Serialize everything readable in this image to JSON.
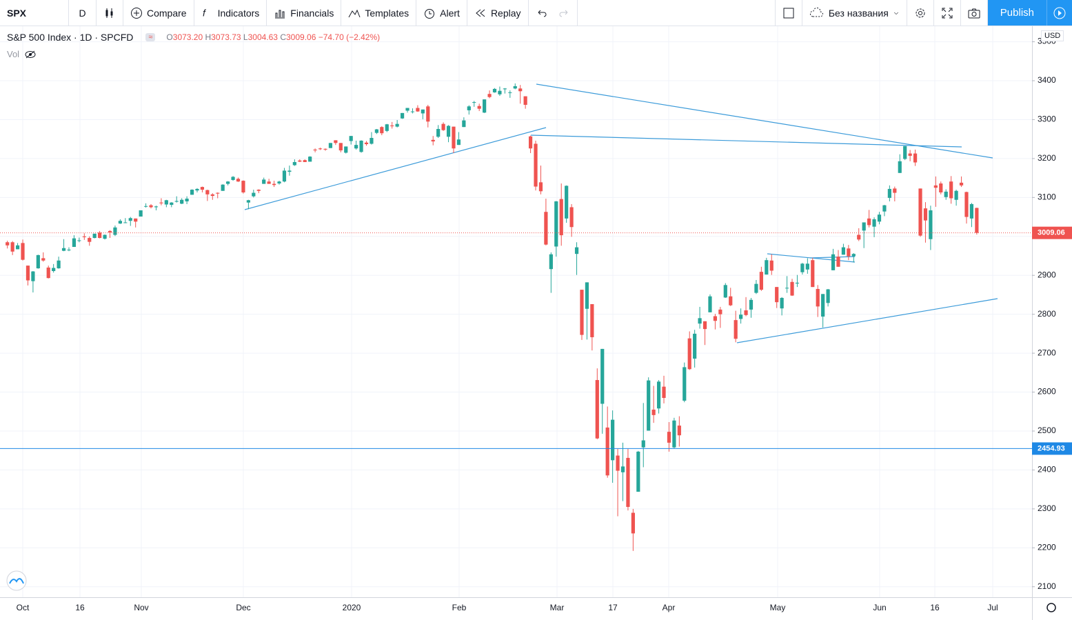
{
  "toolbar": {
    "symbol": "SPX",
    "interval": "D",
    "compare": "Compare",
    "indicators": "Indicators",
    "financials": "Financials",
    "templates": "Templates",
    "alert": "Alert",
    "replay": "Replay",
    "layout_name": "Без названия",
    "publish": "Publish"
  },
  "legend": {
    "title": "S&P 500 Index · 1D · SPCFD",
    "o_label": "O",
    "o": "3073.20",
    "h_label": "H",
    "h": "3073.73",
    "l_label": "L",
    "l": "3004.63",
    "c_label": "C",
    "c": "3009.06",
    "change": "−74.70 (−2.42%)",
    "vol": "Vol"
  },
  "currency": "USD",
  "chart_data": {
    "type": "candlestick",
    "colors": {
      "up": "#26a69a",
      "down": "#ef5350",
      "line": "#1e88e5"
    },
    "grid": true,
    "ylim": [
      2073,
      3540
    ],
    "yticks": [
      2100,
      2200,
      2300,
      2400,
      2500,
      2600,
      2700,
      2800,
      2900,
      3000,
      3100,
      3200,
      3300,
      3400,
      3500
    ],
    "x_labels": [
      "Oct",
      "16",
      "Nov",
      "Dec",
      "2020",
      "Feb",
      "Mar",
      "17",
      "Apr",
      "May",
      "Jun",
      "16",
      "Jul"
    ],
    "last_price": 3009.06,
    "hline_price": 2454.93,
    "candles": [
      [
        2985,
        2989,
        2969,
        2977
      ],
      [
        2985,
        2988,
        2952,
        2961
      ],
      [
        2967,
        2983,
        2967,
        2977
      ],
      [
        2983,
        2992,
        2938,
        2940
      ],
      [
        2925,
        2925,
        2874,
        2887
      ],
      [
        2885,
        2911,
        2856,
        2910
      ],
      [
        2918,
        2953,
        2917,
        2952
      ],
      [
        2944,
        2959,
        2935,
        2938
      ],
      [
        2920,
        2925,
        2892,
        2893
      ],
      [
        2911,
        2929,
        2907,
        2919
      ],
      [
        2918,
        2948,
        2917,
        2938
      ],
      [
        2963,
        2993,
        2962,
        2970
      ],
      [
        2966,
        2972,
        2962,
        2966
      ],
      [
        2973,
        3003,
        2973,
        2995
      ],
      [
        2989,
        2997,
        2985,
        2990
      ],
      [
        3000,
        3008,
        2991,
        2998
      ],
      [
        2996,
        3000,
        2976,
        2986
      ],
      [
        2996,
        3007,
        2995,
        3007
      ],
      [
        3010,
        3014,
        2995,
        2996
      ],
      [
        2994,
        3005,
        2992,
        3004
      ],
      [
        3014,
        3016,
        2996,
        3010
      ],
      [
        3004,
        3028,
        3001,
        3023
      ],
      [
        3033,
        3044,
        3032,
        3040
      ],
      [
        3036,
        3047,
        3034,
        3036
      ],
      [
        3040,
        3050,
        3027,
        3047
      ],
      [
        3046,
        3046,
        3023,
        3038
      ],
      [
        3051,
        3067,
        3051,
        3067
      ],
      [
        3078,
        3085,
        3074,
        3078
      ],
      [
        3080,
        3083,
        3072,
        3075
      ],
      [
        3075,
        3079,
        3067,
        3077
      ],
      [
        3087,
        3098,
        3080,
        3085
      ],
      [
        3082,
        3094,
        3075,
        3093
      ],
      [
        3081,
        3088,
        3075,
        3087
      ],
      [
        3089,
        3103,
        3087,
        3091
      ],
      [
        3084,
        3098,
        3083,
        3094
      ],
      [
        3090,
        3103,
        3083,
        3097
      ],
      [
        3107,
        3121,
        3107,
        3120
      ],
      [
        3118,
        3124,
        3113,
        3122
      ],
      [
        3127,
        3128,
        3113,
        3120
      ],
      [
        3119,
        3120,
        3091,
        3108
      ],
      [
        3108,
        3111,
        3094,
        3104
      ],
      [
        3112,
        3113,
        3098,
        3110
      ],
      [
        3117,
        3134,
        3117,
        3133
      ],
      [
        3135,
        3142,
        3131,
        3141
      ],
      [
        3145,
        3155,
        3143,
        3153
      ],
      [
        3148,
        3151,
        3140,
        3141
      ],
      [
        3143,
        3144,
        3110,
        3113
      ],
      [
        3087,
        3094,
        3070,
        3093
      ],
      [
        3103,
        3120,
        3100,
        3112
      ],
      [
        3120,
        3121,
        3111,
        3117
      ],
      [
        3135,
        3151,
        3135,
        3146
      ],
      [
        3141,
        3148,
        3135,
        3135
      ],
      [
        3135,
        3143,
        3127,
        3132
      ],
      [
        3136,
        3143,
        3133,
        3141
      ],
      [
        3141,
        3176,
        3139,
        3169
      ],
      [
        3166,
        3182,
        3156,
        3169
      ],
      [
        3183,
        3198,
        3181,
        3191
      ],
      [
        3195,
        3198,
        3191,
        3192
      ],
      [
        3196,
        3198,
        3191,
        3191
      ],
      [
        3192,
        3206,
        3192,
        3205
      ],
      [
        3223,
        3226,
        3216,
        3221
      ],
      [
        3226,
        3228,
        3222,
        3224
      ],
      [
        3225,
        3226,
        3220,
        3223
      ],
      [
        3227,
        3240,
        3227,
        3240
      ],
      [
        3247,
        3247,
        3235,
        3240
      ],
      [
        3240,
        3240,
        3216,
        3221
      ],
      [
        3215,
        3231,
        3213,
        3231
      ],
      [
        3245,
        3258,
        3236,
        3258
      ],
      [
        3226,
        3246,
        3223,
        3235
      ],
      [
        3217,
        3247,
        3215,
        3246
      ],
      [
        3241,
        3245,
        3233,
        3237
      ],
      [
        3238,
        3268,
        3236,
        3253
      ],
      [
        3266,
        3276,
        3263,
        3275
      ],
      [
        3281,
        3283,
        3260,
        3265
      ],
      [
        3271,
        3289,
        3268,
        3288
      ],
      [
        3285,
        3294,
        3277,
        3283
      ],
      [
        3282,
        3299,
        3280,
        3289
      ],
      [
        3303,
        3317,
        3302,
        3317
      ],
      [
        3323,
        3330,
        3318,
        3330
      ],
      [
        3321,
        3329,
        3316,
        3321
      ],
      [
        3330,
        3337,
        3320,
        3321
      ],
      [
        3316,
        3326,
        3301,
        3326
      ],
      [
        3334,
        3338,
        3280,
        3295
      ],
      [
        3248,
        3258,
        3234,
        3244
      ],
      [
        3256,
        3286,
        3253,
        3276
      ],
      [
        3289,
        3293,
        3271,
        3273
      ],
      [
        3256,
        3286,
        3242,
        3284
      ],
      [
        3282,
        3282,
        3214,
        3226
      ],
      [
        3235,
        3268,
        3235,
        3249
      ],
      [
        3281,
        3306,
        3281,
        3298
      ],
      [
        3324,
        3337,
        3313,
        3334
      ],
      [
        3344,
        3348,
        3333,
        3345
      ],
      [
        3335,
        3341,
        3322,
        3328
      ],
      [
        3318,
        3352,
        3317,
        3352
      ],
      [
        3366,
        3375,
        3355,
        3358
      ],
      [
        3370,
        3381,
        3369,
        3379
      ],
      [
        3365,
        3385,
        3361,
        3374
      ],
      [
        3378,
        3381,
        3367,
        3380
      ],
      [
        3369,
        3375,
        3356,
        3370
      ],
      [
        3380,
        3393,
        3378,
        3386
      ],
      [
        3380,
        3389,
        3341,
        3373
      ],
      [
        3360,
        3360,
        3328,
        3338
      ],
      [
        3257,
        3259,
        3214,
        3226
      ],
      [
        3238,
        3246,
        3118,
        3128
      ],
      [
        3139,
        3182,
        3108,
        3116
      ],
      [
        3063,
        3097,
        2977,
        2979
      ],
      [
        2916,
        2959,
        2855,
        2954
      ],
      [
        2974,
        3091,
        2948,
        3090
      ],
      [
        3096,
        3136,
        2976,
        3003
      ],
      [
        3046,
        3131,
        3035,
        3130
      ],
      [
        3075,
        3083,
        2999,
        3024
      ],
      [
        2955,
        2985,
        2901,
        2972
      ],
      [
        2863,
        2863,
        2734,
        2747
      ],
      [
        2814,
        2882,
        2735,
        2882
      ],
      [
        2826,
        2826,
        2707,
        2741
      ],
      [
        2631,
        2661,
        2479,
        2481
      ],
      [
        2570,
        2711,
        2493,
        2711
      ],
      [
        2509,
        2563,
        2380,
        2386
      ],
      [
        2425,
        2553,
        2367,
        2529
      ],
      [
        2437,
        2454,
        2281,
        2398
      ],
      [
        2394,
        2470,
        2320,
        2409
      ],
      [
        2431,
        2454,
        2296,
        2305
      ],
      [
        2290,
        2300,
        2192,
        2237
      ],
      [
        2344,
        2449,
        2344,
        2447
      ],
      [
        2458,
        2572,
        2407,
        2476
      ],
      [
        2501,
        2638,
        2501,
        2630
      ],
      [
        2555,
        2616,
        2521,
        2541
      ],
      [
        2558,
        2631,
        2545,
        2627
      ],
      [
        2614,
        2642,
        2571,
        2585
      ],
      [
        2498,
        2523,
        2447,
        2470
      ],
      [
        2458,
        2534,
        2455,
        2527
      ],
      [
        2514,
        2538,
        2460,
        2489
      ],
      [
        2578,
        2676,
        2574,
        2664
      ],
      [
        2738,
        2756,
        2657,
        2659
      ],
      [
        2686,
        2760,
        2663,
        2750
      ],
      [
        2776,
        2819,
        2763,
        2790
      ],
      [
        2782,
        2782,
        2721,
        2762
      ],
      [
        2805,
        2851,
        2805,
        2846
      ],
      [
        2795,
        2801,
        2761,
        2783
      ],
      [
        2812,
        2819,
        2765,
        2800
      ],
      [
        2843,
        2880,
        2842,
        2875
      ],
      [
        2846,
        2868,
        2821,
        2823
      ],
      [
        2785,
        2809,
        2728,
        2737
      ],
      [
        2788,
        2815,
        2776,
        2799
      ],
      [
        2810,
        2844,
        2795,
        2798
      ],
      [
        2812,
        2842,
        2791,
        2837
      ],
      [
        2855,
        2888,
        2852,
        2878
      ],
      [
        2909,
        2922,
        2860,
        2863
      ],
      [
        2902,
        2945,
        2902,
        2939
      ],
      [
        2938,
        2954,
        2901,
        2912
      ],
      [
        2870,
        2870,
        2816,
        2831
      ],
      [
        2815,
        2844,
        2797,
        2842
      ],
      [
        2868,
        2898,
        2855,
        2868
      ],
      [
        2883,
        2891,
        2847,
        2848
      ],
      [
        2879,
        2901,
        2870,
        2881
      ],
      [
        2908,
        2932,
        2902,
        2930
      ],
      [
        2915,
        2944,
        2904,
        2930
      ],
      [
        2939,
        2945,
        2870,
        2870
      ],
      [
        2865,
        2875,
        2793,
        2820
      ],
      [
        2794,
        2852,
        2766,
        2852
      ],
      [
        2829,
        2865,
        2820,
        2864
      ],
      [
        2913,
        2968,
        2913,
        2954
      ],
      [
        2948,
        2965,
        2922,
        2922
      ],
      [
        2953,
        2981,
        2953,
        2972
      ],
      [
        2969,
        2978,
        2939,
        2949
      ],
      [
        2949,
        2957,
        2933,
        2955
      ],
      [
        3004,
        3021,
        2988,
        2992
      ],
      [
        3015,
        3036,
        2970,
        3036
      ],
      [
        3046,
        3068,
        3023,
        3029
      ],
      [
        3025,
        3049,
        2998,
        3044
      ],
      [
        3038,
        3063,
        3031,
        3056
      ],
      [
        3064,
        3081,
        3052,
        3080
      ],
      [
        3099,
        3131,
        3090,
        3122
      ],
      [
        3123,
        3128,
        3090,
        3112
      ],
      [
        3163,
        3211,
        3163,
        3193
      ],
      [
        3199,
        3232,
        3196,
        3232
      ],
      [
        3213,
        3222,
        3193,
        3207
      ],
      [
        3213,
        3223,
        3181,
        3190
      ],
      [
        3123,
        3123,
        2999,
        3002
      ],
      [
        3072,
        3088,
        2984,
        3041
      ],
      [
        2993,
        3079,
        2965,
        3067
      ],
      [
        3131,
        3154,
        3076,
        3125
      ],
      [
        3136,
        3141,
        3108,
        3113
      ],
      [
        3101,
        3121,
        3094,
        3115
      ],
      [
        3141,
        3155,
        3084,
        3098
      ],
      [
        3094,
        3120,
        3079,
        3117
      ],
      [
        3138,
        3154,
        3127,
        3131
      ],
      [
        3114,
        3115,
        3033,
        3050
      ],
      [
        3046,
        3086,
        3024,
        3083
      ],
      [
        3073.2,
        3073.73,
        3004.63,
        3009.06
      ]
    ]
  }
}
